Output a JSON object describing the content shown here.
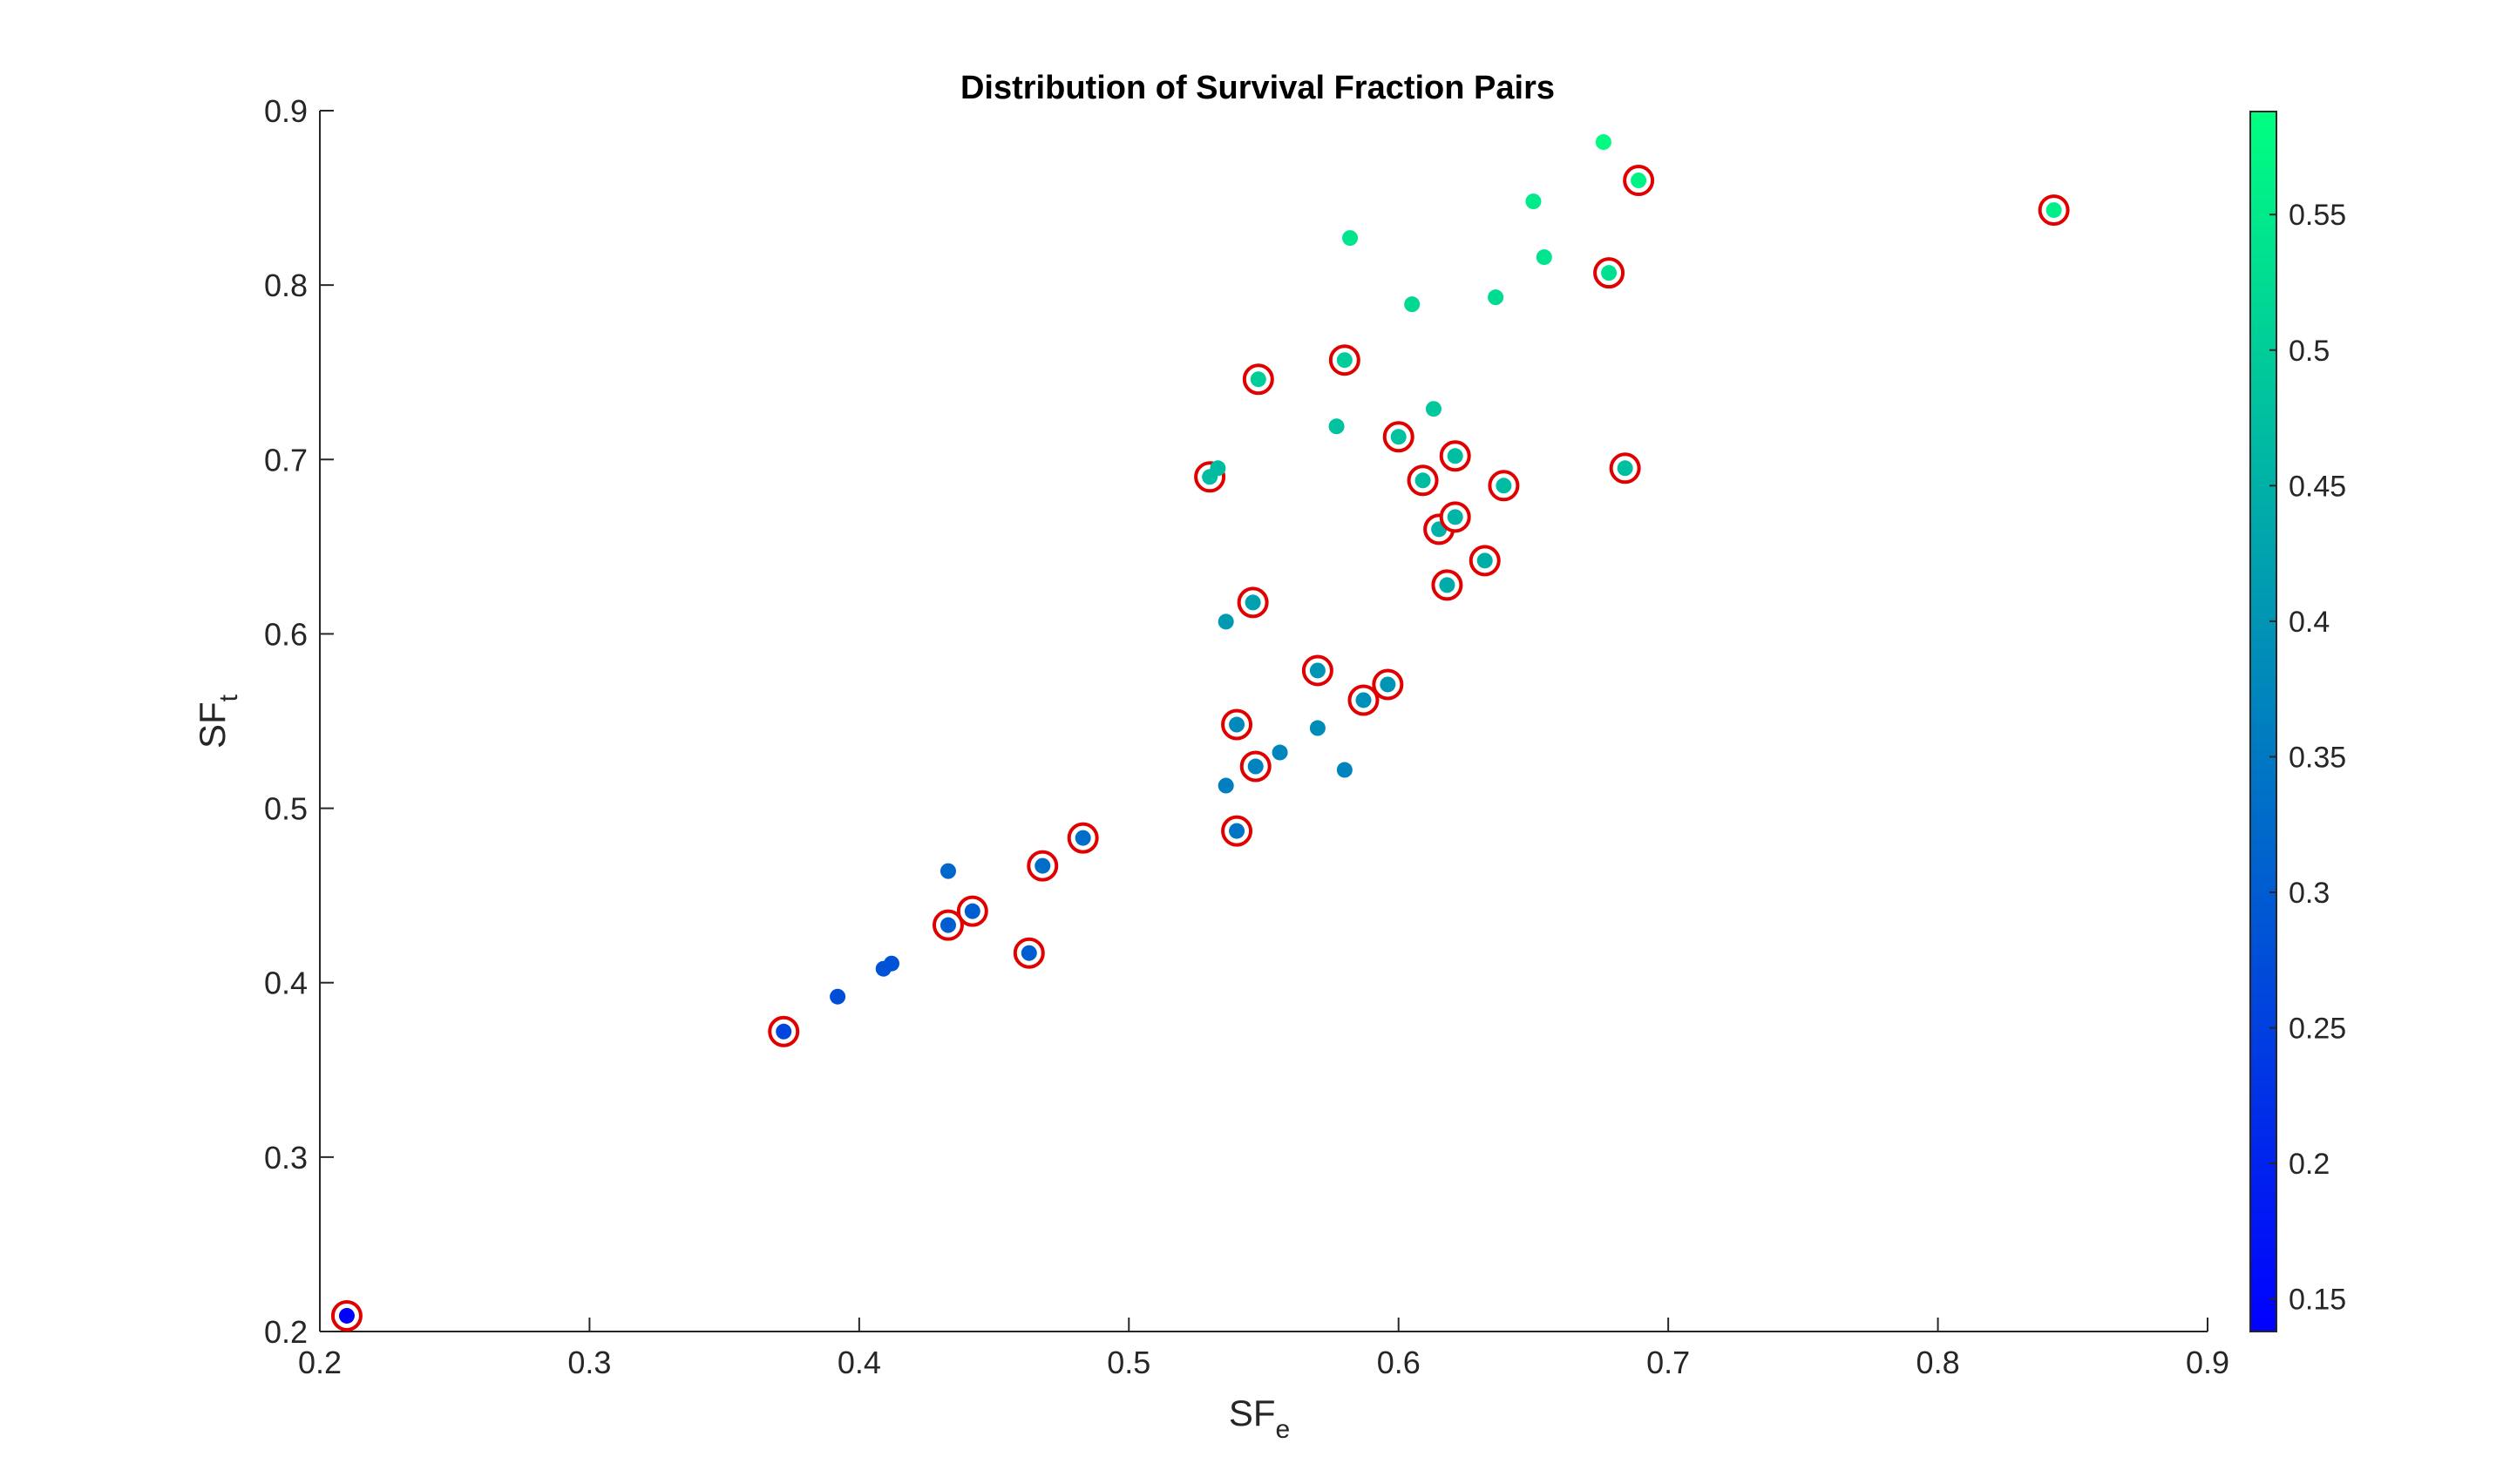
{
  "chart_data": {
    "type": "scatter",
    "title": "Distribution of Survival Fraction Pairs",
    "xlabel": {
      "base": "SF",
      "sub": "e"
    },
    "ylabel": {
      "base": "SF",
      "sub": "t"
    },
    "xlim": [
      0.2,
      0.9
    ],
    "ylim": [
      0.2,
      0.9
    ],
    "xticks": [
      "0.2",
      "0.3",
      "0.4",
      "0.5",
      "0.6",
      "0.7",
      "0.8",
      "0.9"
    ],
    "yticks": [
      "0.2",
      "0.3",
      "0.4",
      "0.5",
      "0.6",
      "0.7",
      "0.8",
      "0.9"
    ],
    "grid": false,
    "colormap": {
      "low": "#0000ff",
      "high": "#00ff80"
    },
    "colorbar": {
      "range": [
        0.138,
        0.588
      ],
      "ticks": [
        "0.15",
        "0.2",
        "0.25",
        "0.3",
        "0.35",
        "0.4",
        "0.45",
        "0.5",
        "0.55"
      ],
      "tick_values": [
        0.15,
        0.2,
        0.25,
        0.3,
        0.35,
        0.4,
        0.45,
        0.5,
        0.55
      ],
      "placement": "right"
    },
    "marker_ring_color": "#e00000",
    "points": [
      {
        "x": 0.21,
        "y": 0.209,
        "c": 0.14,
        "circled": true
      },
      {
        "x": 0.372,
        "y": 0.372,
        "c": 0.26,
        "circled": true
      },
      {
        "x": 0.392,
        "y": 0.392,
        "c": 0.275,
        "circled": false
      },
      {
        "x": 0.409,
        "y": 0.408,
        "c": 0.285,
        "circled": false
      },
      {
        "x": 0.412,
        "y": 0.411,
        "c": 0.285,
        "circled": false
      },
      {
        "x": 0.433,
        "y": 0.433,
        "c": 0.3,
        "circled": true
      },
      {
        "x": 0.433,
        "y": 0.464,
        "c": 0.32,
        "circled": false
      },
      {
        "x": 0.442,
        "y": 0.441,
        "c": 0.3,
        "circled": true
      },
      {
        "x": 0.463,
        "y": 0.417,
        "c": 0.3,
        "circled": true
      },
      {
        "x": 0.468,
        "y": 0.467,
        "c": 0.33,
        "circled": true
      },
      {
        "x": 0.483,
        "y": 0.483,
        "c": 0.33,
        "circled": true
      },
      {
        "x": 0.53,
        "y": 0.69,
        "c": 0.47,
        "circled": true
      },
      {
        "x": 0.533,
        "y": 0.695,
        "c": 0.47,
        "circled": false
      },
      {
        "x": 0.536,
        "y": 0.513,
        "c": 0.36,
        "circled": false
      },
      {
        "x": 0.536,
        "y": 0.607,
        "c": 0.41,
        "circled": false
      },
      {
        "x": 0.54,
        "y": 0.487,
        "c": 0.345,
        "circled": true
      },
      {
        "x": 0.54,
        "y": 0.548,
        "c": 0.38,
        "circled": true
      },
      {
        "x": 0.546,
        "y": 0.618,
        "c": 0.42,
        "circled": true
      },
      {
        "x": 0.547,
        "y": 0.524,
        "c": 0.37,
        "circled": true
      },
      {
        "x": 0.548,
        "y": 0.746,
        "c": 0.5,
        "circled": true
      },
      {
        "x": 0.556,
        "y": 0.532,
        "c": 0.375,
        "circled": false
      },
      {
        "x": 0.57,
        "y": 0.546,
        "c": 0.385,
        "circled": false
      },
      {
        "x": 0.57,
        "y": 0.579,
        "c": 0.4,
        "circled": true
      },
      {
        "x": 0.577,
        "y": 0.719,
        "c": 0.48,
        "circled": false
      },
      {
        "x": 0.58,
        "y": 0.522,
        "c": 0.37,
        "circled": false
      },
      {
        "x": 0.58,
        "y": 0.757,
        "c": 0.5,
        "circled": true
      },
      {
        "x": 0.582,
        "y": 0.827,
        "c": 0.54,
        "circled": false
      },
      {
        "x": 0.587,
        "y": 0.562,
        "c": 0.39,
        "circled": true
      },
      {
        "x": 0.596,
        "y": 0.571,
        "c": 0.4,
        "circled": true
      },
      {
        "x": 0.6,
        "y": 0.713,
        "c": 0.48,
        "circled": true
      },
      {
        "x": 0.605,
        "y": 0.789,
        "c": 0.52,
        "circled": false
      },
      {
        "x": 0.609,
        "y": 0.688,
        "c": 0.47,
        "circled": true
      },
      {
        "x": 0.613,
        "y": 0.729,
        "c": 0.49,
        "circled": false
      },
      {
        "x": 0.615,
        "y": 0.66,
        "c": 0.45,
        "circled": true
      },
      {
        "x": 0.618,
        "y": 0.628,
        "c": 0.44,
        "circled": true
      },
      {
        "x": 0.621,
        "y": 0.667,
        "c": 0.455,
        "circled": true
      },
      {
        "x": 0.621,
        "y": 0.702,
        "c": 0.475,
        "circled": true
      },
      {
        "x": 0.632,
        "y": 0.642,
        "c": 0.445,
        "circled": true
      },
      {
        "x": 0.636,
        "y": 0.793,
        "c": 0.525,
        "circled": false
      },
      {
        "x": 0.639,
        "y": 0.685,
        "c": 0.47,
        "circled": true
      },
      {
        "x": 0.65,
        "y": 0.848,
        "c": 0.55,
        "circled": false
      },
      {
        "x": 0.654,
        "y": 0.816,
        "c": 0.54,
        "circled": false
      },
      {
        "x": 0.676,
        "y": 0.882,
        "c": 0.58,
        "circled": false
      },
      {
        "x": 0.678,
        "y": 0.807,
        "c": 0.535,
        "circled": true
      },
      {
        "x": 0.684,
        "y": 0.695,
        "c": 0.475,
        "circled": true
      },
      {
        "x": 0.689,
        "y": 0.86,
        "c": 0.565,
        "circled": true
      },
      {
        "x": 0.843,
        "y": 0.843,
        "c": 0.56,
        "circled": true
      }
    ]
  }
}
